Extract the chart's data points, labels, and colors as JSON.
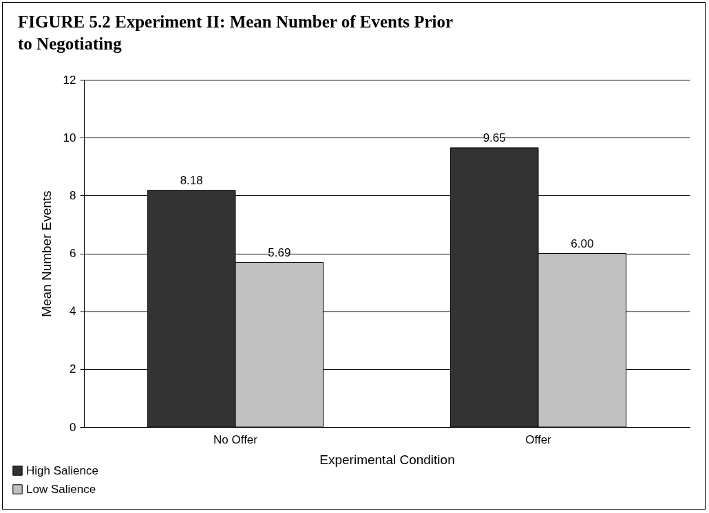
{
  "chart_data": {
    "type": "bar",
    "title": "FIGURE 5.2    Experiment II: Mean Number of Events Prior to Negotiating",
    "xlabel": "Experimental Condition",
    "ylabel": "Mean Number Events",
    "categories": [
      "No Offer",
      "Offer"
    ],
    "series": [
      {
        "name": "High Salience",
        "color": "#333333",
        "values": [
          8.18,
          9.65
        ]
      },
      {
        "name": "Low Salience",
        "color": "#c0c0c0",
        "values": [
          5.69,
          6.0
        ]
      }
    ],
    "value_labels": [
      [
        "8.18",
        "9.65"
      ],
      [
        "5.69",
        "6.00"
      ]
    ],
    "ylim": [
      0,
      12
    ],
    "yticks": [
      0,
      2,
      4,
      6,
      8,
      10,
      12
    ],
    "grid": "y",
    "legend": "bottom left"
  }
}
